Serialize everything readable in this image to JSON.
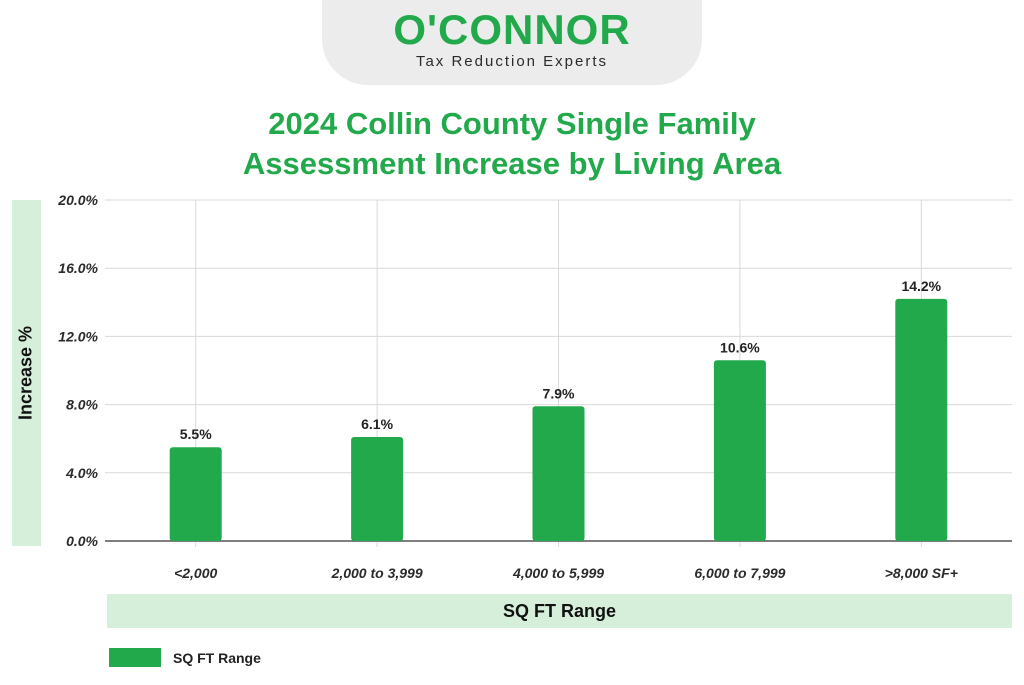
{
  "logo": {
    "brand": "O'CONNOR",
    "tagline": "Tax Reduction Experts"
  },
  "colors": {
    "brand_green": "#22a94b",
    "band_green": "#d6efda",
    "grid": "#d9d9d9"
  },
  "chart_data": {
    "type": "bar",
    "title": "2024 Collin County Single Family Assessment Increase by Living Area",
    "title_lines": [
      "2024 Collin County Single Family",
      "Assessment Increase by Living Area"
    ],
    "categories": [
      "<2,000",
      "2,000 to 3,999",
      "4,000 to 5,999",
      "6,000 to 7,999",
      ">8,000 SF+"
    ],
    "series": [
      {
        "name": "SQ FT Range",
        "values": [
          5.5,
          6.1,
          7.9,
          10.6,
          14.2
        ],
        "labels": [
          "5.5%",
          "6.1%",
          "7.9%",
          "10.6%",
          "14.2%"
        ]
      }
    ],
    "xlabel": "SQ FT Range",
    "ylabel": "Increase %",
    "ylim": [
      0,
      20
    ],
    "yticks": [
      {
        "value": 0,
        "label": "0.0%"
      },
      {
        "value": 4,
        "label": "4.0%"
      },
      {
        "value": 8,
        "label": "8.0%"
      },
      {
        "value": 12,
        "label": "12.0%"
      },
      {
        "value": 16,
        "label": "16.0%"
      },
      {
        "value": 20,
        "label": "20.0%"
      }
    ],
    "grid": true,
    "legend": "bottom-left"
  }
}
